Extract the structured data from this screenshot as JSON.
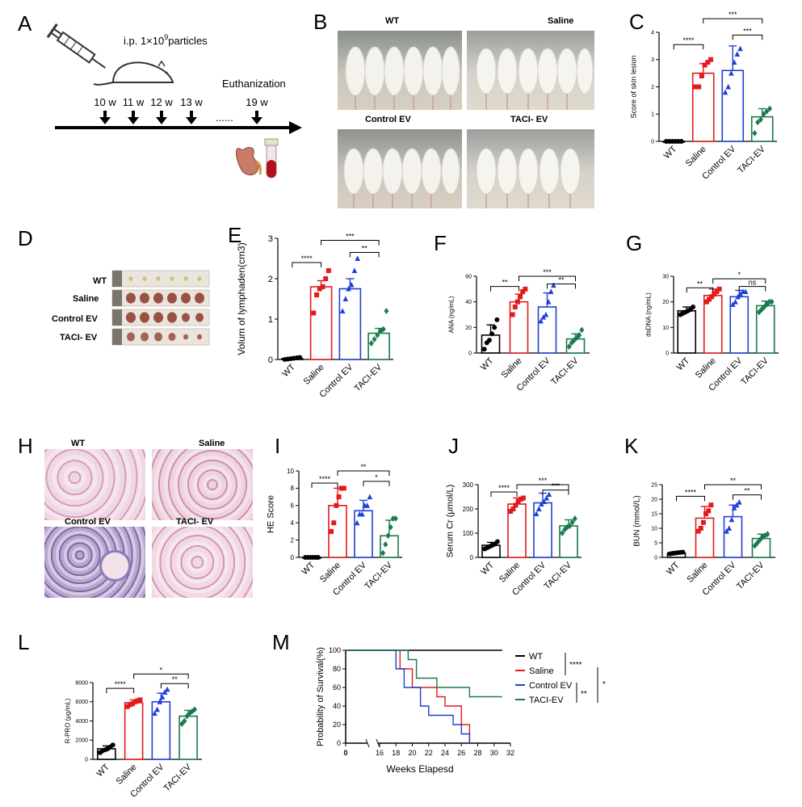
{
  "panel_letters": {
    "A": "A",
    "B": "B",
    "C": "C",
    "D": "D",
    "E": "E",
    "F": "F",
    "G": "G",
    "H": "H",
    "I": "I",
    "J": "J",
    "K": "K",
    "L": "L",
    "M": "M"
  },
  "panel_a": {
    "dose_prefix": "i.p. 1×10",
    "dose_exp": "9",
    "dose_suffix": "particles",
    "weeks": [
      "10 w",
      "11 w",
      "12 w",
      "13 w",
      "19 w"
    ],
    "dots": "......",
    "euthanization": "Euthanization"
  },
  "panel_b": {
    "captions": [
      "WT",
      "Saline",
      "Control EV",
      "TACI- EV"
    ]
  },
  "panel_d": {
    "captions": [
      "WT",
      "Saline",
      "Control EV",
      "TACI- EV"
    ]
  },
  "panel_h": {
    "captions": [
      "WT",
      "Saline",
      "Control EV",
      "TACI- EV"
    ]
  },
  "colors": {
    "WT": "#000000",
    "Saline": "#e31a1c",
    "Control EV": "#1f3fd6",
    "TACI-EV": "#1b7a4c"
  },
  "chart_data": [
    {
      "id": "C",
      "type": "bar",
      "categories": [
        "WT",
        "Saline",
        "Control EV",
        "TACI-EV"
      ],
      "values": [
        0,
        2.5,
        2.6,
        0.9
      ],
      "errors": [
        0,
        0.35,
        0.9,
        0.3
      ],
      "points": [
        [
          0,
          0,
          0,
          0,
          0,
          0
        ],
        [
          2.0,
          2.0,
          2.4,
          2.8,
          2.9,
          3.0
        ],
        [
          1.8,
          2.0,
          2.5,
          2.9,
          3.2,
          3.4
        ],
        [
          0.3,
          0.7,
          0.8,
          1.0,
          1.1,
          1.2
        ]
      ],
      "ylabel": "Score of skin lesion",
      "ylim": [
        0,
        4
      ],
      "yticks": [
        0,
        1,
        2,
        3,
        4
      ],
      "brackets": [
        {
          "from": 0,
          "to": 1,
          "y": 3.55,
          "label": "****"
        },
        {
          "from": 1,
          "to": 3,
          "y": 4.5,
          "label": "***"
        },
        {
          "from": 2,
          "to": 3,
          "y": 3.9,
          "label": "***"
        }
      ]
    },
    {
      "id": "E",
      "type": "bar",
      "categories": [
        "WT",
        "Saline",
        "Control EV",
        "TACI-EV"
      ],
      "values": [
        0.02,
        1.8,
        1.75,
        0.65
      ],
      "errors": [
        0.02,
        0.15,
        0.25,
        0.12
      ],
      "points": [
        [
          0,
          0.01,
          0.02,
          0.03,
          0.04,
          0.05
        ],
        [
          1.15,
          1.6,
          1.75,
          1.8,
          2.0,
          2.2
        ],
        [
          1.2,
          1.5,
          1.75,
          1.85,
          2.2,
          2.5
        ],
        [
          0.4,
          0.5,
          0.6,
          0.7,
          0.75,
          1.2
        ]
      ],
      "ylabel": "Volum of lymphaden(cm3)",
      "ylim": [
        0,
        3
      ],
      "yticks": [
        0,
        1,
        2,
        3
      ],
      "brackets": [
        {
          "from": 0,
          "to": 1,
          "y": 2.4,
          "label": "****"
        },
        {
          "from": 1,
          "to": 3,
          "y": 2.95,
          "label": "***"
        },
        {
          "from": 2,
          "to": 3,
          "y": 2.65,
          "label": "**"
        }
      ]
    },
    {
      "id": "F",
      "type": "bar",
      "categories": [
        "WT",
        "Saline",
        "Control EV",
        "TACI-EV"
      ],
      "values": [
        14,
        40,
        36,
        11
      ],
      "errors": [
        8,
        6,
        11,
        4
      ],
      "points": [
        [
          3,
          8,
          10,
          15,
          20,
          26
        ],
        [
          30,
          36,
          40,
          44,
          48,
          50
        ],
        [
          25,
          28,
          30,
          40,
          48,
          53
        ],
        [
          5,
          8,
          10,
          12,
          14,
          18
        ]
      ],
      "ylabel": "ANA (ng/mL)",
      "ylim": [
        0,
        60
      ],
      "yticks": [
        0,
        20,
        40,
        60
      ],
      "brackets": [
        {
          "from": 0,
          "to": 1,
          "y": 52,
          "label": "**"
        },
        {
          "from": 1,
          "to": 3,
          "y": 60,
          "label": "***"
        },
        {
          "from": 2,
          "to": 3,
          "y": 54,
          "label": "**"
        }
      ]
    },
    {
      "id": "G",
      "type": "bar",
      "categories": [
        "WT",
        "Saline",
        "Control EV",
        "TACI-EV"
      ],
      "values": [
        16.5,
        22.5,
        22,
        18.5
      ],
      "errors": [
        1.5,
        2.5,
        2.5,
        1.8
      ],
      "points": [
        [
          15,
          15.5,
          16,
          16.5,
          17,
          18
        ],
        [
          20,
          21,
          22,
          23,
          24,
          25
        ],
        [
          19,
          20,
          22,
          23,
          24,
          24
        ],
        [
          16,
          17,
          18,
          19,
          20,
          20
        ]
      ],
      "ylabel": "dsDNA (ng/mL)",
      "ylim": [
        0,
        30
      ],
      "yticks": [
        0,
        10,
        20,
        30
      ],
      "brackets": [
        {
          "from": 0,
          "to": 1,
          "y": 25.5,
          "label": "**"
        },
        {
          "from": 1,
          "to": 3,
          "y": 29,
          "label": "*"
        },
        {
          "from": 2,
          "to": 3,
          "y": 26,
          "label": "ns"
        }
      ]
    },
    {
      "id": "I",
      "type": "bar",
      "categories": [
        "WT",
        "Saline",
        "Control EV",
        "TACI-EV"
      ],
      "values": [
        0,
        6,
        5.4,
        2.5
      ],
      "errors": [
        0,
        2,
        1.2,
        1.8
      ],
      "points": [
        [
          0,
          0,
          0,
          0,
          0,
          0
        ],
        [
          3,
          4,
          6,
          7,
          8,
          8
        ],
        [
          4,
          5,
          5,
          6,
          6,
          7
        ],
        [
          0.5,
          1.5,
          2.5,
          3.5,
          4.5,
          4.5
        ]
      ],
      "ylabel": "HE Score",
      "ylim": [
        0,
        10
      ],
      "yticks": [
        0,
        2,
        4,
        6,
        8,
        10
      ],
      "brackets": [
        {
          "from": 0,
          "to": 1,
          "y": 8.6,
          "label": "****"
        },
        {
          "from": 1,
          "to": 3,
          "y": 10,
          "label": "**"
        },
        {
          "from": 2,
          "to": 3,
          "y": 8.8,
          "label": "*"
        }
      ]
    },
    {
      "id": "J",
      "type": "bar",
      "categories": [
        "WT",
        "Saline",
        "Control EV",
        "TACI-EV"
      ],
      "values": [
        50,
        220,
        225,
        130
      ],
      "errors": [
        12,
        25,
        40,
        25
      ],
      "points": [
        [
          35,
          40,
          45,
          50,
          55,
          65
        ],
        [
          190,
          200,
          215,
          230,
          240,
          245
        ],
        [
          180,
          200,
          220,
          230,
          245,
          260
        ],
        [
          100,
          115,
          125,
          130,
          145,
          160
        ]
      ],
      "ylabel": "Serum Cr (μmol/L)",
      "ylim": [
        0,
        300
      ],
      "yticks": [
        0,
        100,
        200,
        300
      ],
      "brackets": [
        {
          "from": 0,
          "to": 1,
          "y": 270,
          "label": "****"
        },
        {
          "from": 1,
          "to": 3,
          "y": 300,
          "label": "***"
        },
        {
          "from": 2,
          "to": 3,
          "y": 278,
          "label": "***"
        }
      ]
    },
    {
      "id": "K",
      "type": "bar",
      "categories": [
        "WT",
        "Saline",
        "Control EV",
        "TACI-EV"
      ],
      "values": [
        1.5,
        13.5,
        14,
        6.5
      ],
      "errors": [
        0.3,
        4,
        4,
        1.5
      ],
      "points": [
        [
          1.2,
          1.4,
          1.5,
          1.6,
          1.7,
          1.8
        ],
        [
          9,
          10,
          12,
          15,
          16,
          18
        ],
        [
          9,
          10,
          13,
          17,
          18,
          19
        ],
        [
          4,
          5,
          6,
          7,
          7.5,
          8
        ]
      ],
      "ylabel": "BUN (mmol/L)",
      "ylim": [
        0,
        25
      ],
      "yticks": [
        0,
        5,
        10,
        15,
        20,
        25
      ],
      "brackets": [
        {
          "from": 0,
          "to": 1,
          "y": 21,
          "label": "****"
        },
        {
          "from": 1,
          "to": 3,
          "y": 25,
          "label": "**"
        },
        {
          "from": 2,
          "to": 3,
          "y": 21.5,
          "label": "**"
        }
      ]
    },
    {
      "id": "L",
      "type": "bar",
      "categories": [
        "WT",
        "Saline",
        "Control EV",
        "TACI-EV"
      ],
      "values": [
        1100,
        5900,
        6000,
        4500
      ],
      "errors": [
        300,
        300,
        900,
        600
      ],
      "points": [
        [
          700,
          900,
          1000,
          1100,
          1300,
          1500
        ],
        [
          5500,
          5700,
          5800,
          6000,
          6100,
          6200
        ],
        [
          4800,
          5200,
          6000,
          6500,
          7000,
          7300
        ],
        [
          3700,
          4000,
          4500,
          4800,
          5000,
          5200
        ]
      ],
      "ylabel": "R-PRO (μg/mL)",
      "ylim": [
        0,
        8000
      ],
      "yticks": [
        0,
        2000,
        4000,
        6000,
        8000
      ],
      "brackets": [
        {
          "from": 0,
          "to": 1,
          "y": 7400,
          "label": "****"
        },
        {
          "from": 1,
          "to": 3,
          "y": 8900,
          "label": "*"
        },
        {
          "from": 2,
          "to": 3,
          "y": 7900,
          "label": "**"
        }
      ]
    },
    {
      "id": "M",
      "type": "line",
      "xlabel": "Weeks Elapesd",
      "ylabel": "Probability of Survival(%)",
      "ylim": [
        0,
        100
      ],
      "yticks": [
        0,
        20,
        40,
        60,
        80,
        100
      ],
      "xticks": [
        0,
        16,
        18,
        20,
        22,
        24,
        26,
        28,
        30,
        32
      ],
      "series": [
        {
          "name": "WT",
          "steps": [
            [
              0,
              100
            ],
            [
              31,
              100
            ]
          ]
        },
        {
          "name": "Saline",
          "steps": [
            [
              0,
              100
            ],
            [
              18.5,
              100
            ],
            [
              18.5,
              80
            ],
            [
              20,
              80
            ],
            [
              20,
              60
            ],
            [
              23,
              60
            ],
            [
              23,
              50
            ],
            [
              24,
              50
            ],
            [
              24,
              40
            ],
            [
              26,
              40
            ],
            [
              26,
              20
            ],
            [
              27,
              20
            ],
            [
              27,
              0
            ]
          ]
        },
        {
          "name": "Control EV",
          "steps": [
            [
              0,
              100
            ],
            [
              18,
              100
            ],
            [
              18,
              80
            ],
            [
              19,
              80
            ],
            [
              19,
              60
            ],
            [
              21,
              60
            ],
            [
              21,
              40
            ],
            [
              22,
              40
            ],
            [
              22,
              30
            ],
            [
              25,
              30
            ],
            [
              25,
              20
            ],
            [
              26,
              20
            ],
            [
              26,
              10
            ],
            [
              27,
              10
            ],
            [
              27,
              0
            ]
          ]
        },
        {
          "name": "TACI-EV",
          "steps": [
            [
              0,
              100
            ],
            [
              19.5,
              100
            ],
            [
              19.5,
              90
            ],
            [
              20.5,
              90
            ],
            [
              20.5,
              70
            ],
            [
              23,
              70
            ],
            [
              23,
              60
            ],
            [
              27,
              60
            ],
            [
              27,
              50
            ],
            [
              31,
              50
            ]
          ]
        }
      ],
      "legend": [
        "WT",
        "Saline",
        "Control EV",
        "TACI-EV"
      ],
      "sig": [
        "****",
        "**",
        "*"
      ]
    }
  ]
}
